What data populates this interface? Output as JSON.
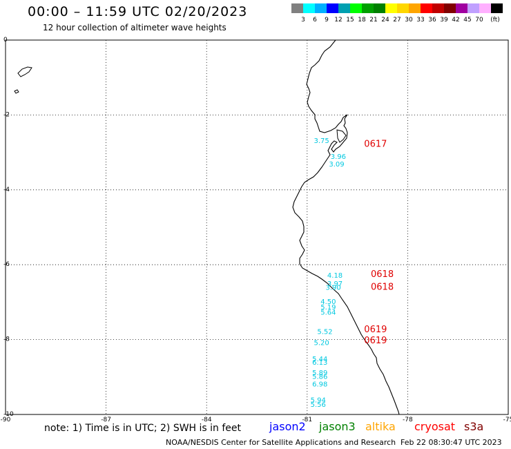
{
  "header": {
    "title": "00:00 – 11:59 UTC 02/20/2023",
    "subtitle": "12 hour collection of altimeter wave heights"
  },
  "color_scale": {
    "colors": [
      "#808080",
      "#00ffff",
      "#00b0ff",
      "#0000ff",
      "#00a0b0",
      "#00ff00",
      "#00a000",
      "#008000",
      "#ffff00",
      "#ffd700",
      "#ffa500",
      "#ff0000",
      "#c00000",
      "#800000",
      "#a000a0",
      "#c0a0ff",
      "#ffb0ff",
      "#000000"
    ],
    "labels": [
      "3",
      "6",
      "9",
      "12",
      "15",
      "18",
      "21",
      "24",
      "27",
      "30",
      "33",
      "36",
      "39",
      "42",
      "45",
      "70",
      "(ft)"
    ]
  },
  "map": {
    "x_ticks": [
      "-90",
      "-87",
      "-84",
      "-81",
      "-78",
      "-75"
    ],
    "y_ticks": [
      "0",
      "-2",
      "-4",
      "-6",
      "-8",
      "-10"
    ],
    "lon_range": [
      -90,
      -75
    ],
    "lat_range": [
      -10,
      0
    ],
    "wave_labels": [
      {
        "text": "3.75",
        "lon": -80.8,
        "lat": -2.75
      },
      {
        "text": "3.96",
        "lon": -80.3,
        "lat": -3.17
      },
      {
        "text": "3.09",
        "lon": -80.35,
        "lat": -3.38
      },
      {
        "text": "4.18",
        "lon": -80.4,
        "lat": -6.35
      },
      {
        "text": "3.97",
        "lon": -80.4,
        "lat": -6.57
      },
      {
        "text": "3.90",
        "lon": -80.45,
        "lat": -6.67
      },
      {
        "text": "4.50",
        "lon": -80.6,
        "lat": -7.05
      },
      {
        "text": "5.19",
        "lon": -80.6,
        "lat": -7.2
      },
      {
        "text": "5.64",
        "lon": -80.6,
        "lat": -7.33
      },
      {
        "text": "5.52",
        "lon": -80.7,
        "lat": -7.85
      },
      {
        "text": "5.20",
        "lon": -80.8,
        "lat": -8.15
      },
      {
        "text": "5.44",
        "lon": -80.85,
        "lat": -8.58
      },
      {
        "text": "6.13",
        "lon": -80.85,
        "lat": -8.67
      },
      {
        "text": "5.89",
        "lon": -80.85,
        "lat": -8.95
      },
      {
        "text": "5.86",
        "lon": -80.85,
        "lat": -9.05
      },
      {
        "text": "6.98",
        "lon": -80.85,
        "lat": -9.25
      },
      {
        "text": "5.94",
        "lon": -80.9,
        "lat": -9.68
      },
      {
        "text": "5.56",
        "lon": -80.9,
        "lat": -9.8
      }
    ],
    "time_labels": [
      {
        "text": "0617",
        "lon": -79.3,
        "lat": -2.85
      },
      {
        "text": "0618",
        "lon": -79.1,
        "lat": -6.33
      },
      {
        "text": "0618",
        "lon": -79.1,
        "lat": -6.67
      },
      {
        "text": "0619",
        "lon": -79.3,
        "lat": -7.8
      },
      {
        "text": "0619",
        "lon": -79.3,
        "lat": -8.1
      }
    ]
  },
  "footer": {
    "note": "note: 1) Time is in UTC; 2) SWH is in feet",
    "satellites": [
      {
        "name": "jason2",
        "color": "#0000ff"
      },
      {
        "name": "jason3",
        "color": "#008000"
      },
      {
        "name": "altika",
        "color": "#ffa500"
      },
      {
        "name": "cryosat",
        "color": "#ff0000"
      },
      {
        "name": "s3a",
        "color": "#800000"
      }
    ],
    "credit": "NOAA/NESDIS Center for Satellite Applications and Research",
    "timestamp": "Feb 22 08:30:47 UTC 2023"
  }
}
